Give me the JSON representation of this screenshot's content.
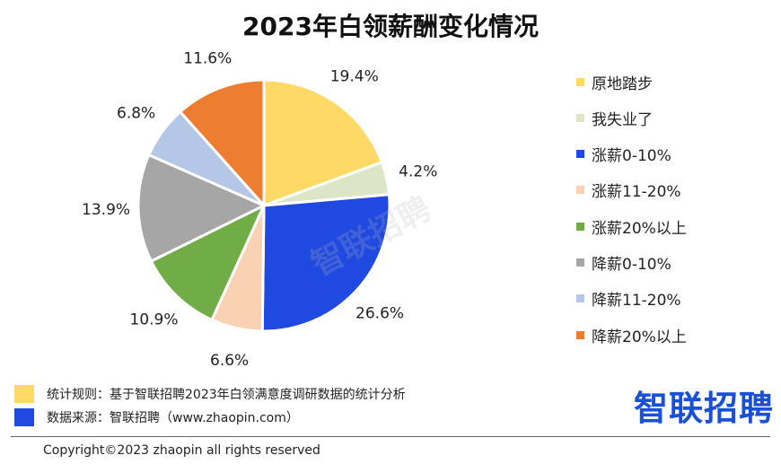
{
  "chart_data": {
    "type": "pie",
    "title": "2023年白领薪酬变化情况",
    "slices": [
      {
        "label": "原地踏步",
        "value": 19.4,
        "value_label": "19.4%",
        "color": "#FFD966"
      },
      {
        "label": "我失业了",
        "value": 4.2,
        "value_label": "4.2%",
        "color": "#DCE6C6"
      },
      {
        "label": "涨薪0-10%",
        "value": 26.6,
        "value_label": "26.6%",
        "color": "#1F49E0"
      },
      {
        "label": "涨薪11-20%",
        "value": 6.6,
        "value_label": "6.6%",
        "color": "#F9D2B4"
      },
      {
        "label": "涨薪20%以上",
        "value": 10.9,
        "value_label": "10.9%",
        "color": "#70AD47"
      },
      {
        "label": "降薪0-10%",
        "value": 13.9,
        "value_label": "13.9%",
        "color": "#A6A6A6"
      },
      {
        "label": "降薪11-20%",
        "value": 6.8,
        "value_label": "6.8%",
        "color": "#B4C7E7"
      },
      {
        "label": "降薪20%以上",
        "value": 11.6,
        "value_label": "11.6%",
        "color": "#ED7D31"
      }
    ],
    "legend_position": "right"
  },
  "watermark": "智联招聘",
  "notes": [
    {
      "text": "统计规则：基于智联招聘2023年白领满意度调研数据的统计分析",
      "color": "#FFD966"
    },
    {
      "text": "数据来源：智联招聘（www.zhaopin.com）",
      "color": "#1F49E0"
    }
  ],
  "logo": "智联招聘",
  "copyright": "Copyright©2023 zhaopin all rights reserved"
}
